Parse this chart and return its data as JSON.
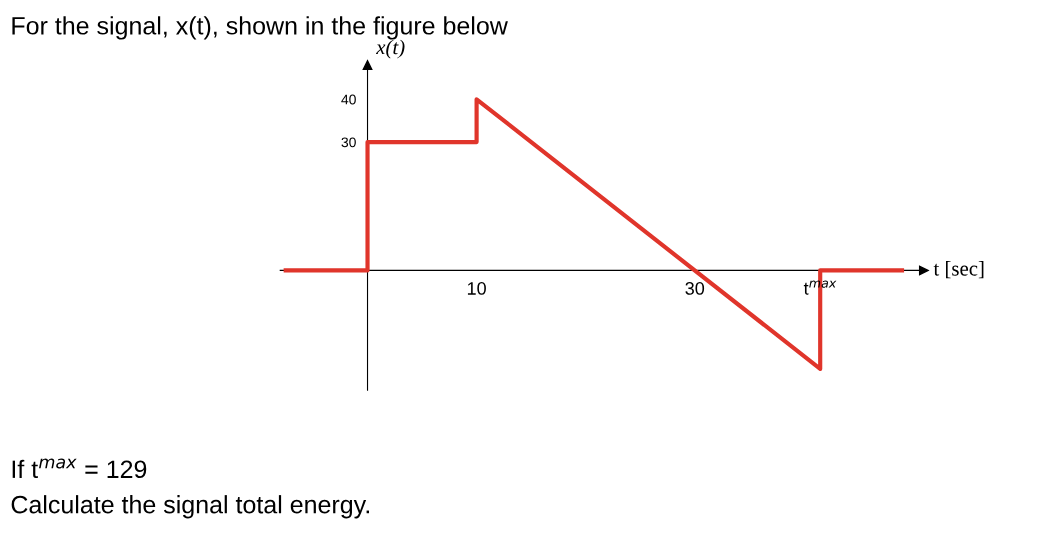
{
  "chart_data": {
    "type": "line",
    "title": "For the signal, x(t), shown in the figure below",
    "xlabel": "t [sec]",
    "ylabel": "x(t)",
    "x": [
      -7.5,
      0,
      0,
      10,
      10,
      41.5,
      41.5,
      49
    ],
    "series": [
      {
        "color": "#e0352b",
        "values": [
          0,
          0,
          30,
          30,
          40,
          -23,
          0,
          0
        ]
      }
    ],
    "xlim": [
      -8,
      51
    ],
    "ylim": [
      -28,
      48
    ],
    "xticks": [
      10,
      30,
      {
        "value": 41.5,
        "label": "t$^{max}$"
      }
    ],
    "yticks": [
      30,
      40
    ],
    "grid": false,
    "marker": "none",
    "line_style": "solid",
    "annotations": [
      "If t$^{max}$ = 129",
      "Calculate the signal total energy."
    ]
  }
}
